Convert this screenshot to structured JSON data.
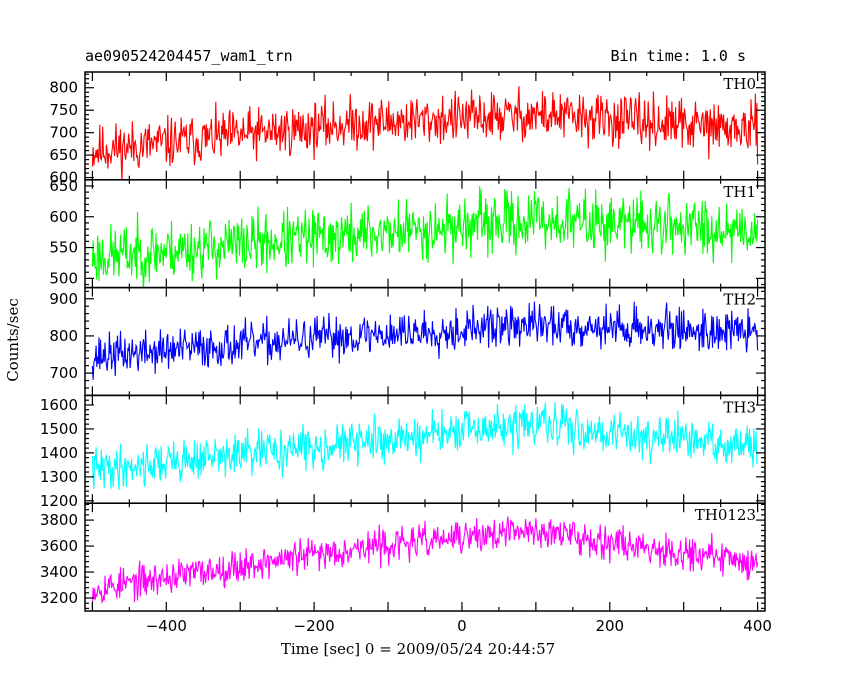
{
  "header": {
    "object_name": "ae090524204457_wam1_trn",
    "bin_time": "Bin time: 1.0 s"
  },
  "axes": {
    "xlabel": "Time [sec] 0 = 2009/05/24 20:44:57",
    "ylabel": "Counts/sec"
  },
  "chart_data": {
    "type": "line",
    "x": {
      "start": -500,
      "end": 400,
      "step": 1,
      "range": [
        -510,
        410
      ],
      "ticks": [
        -400,
        -200,
        0,
        200,
        400
      ]
    },
    "grid": false,
    "stacked_panels": true,
    "series": [
      {
        "name": "TH0",
        "color": "#ff0000",
        "ylim": [
          595,
          835
        ],
        "ticks": [
          600,
          650,
          700,
          750,
          800
        ],
        "level_start": 660,
        "level_mid": 720,
        "level_peak": 740,
        "level_end": 705,
        "noise": 35,
        "seed": 11
      },
      {
        "name": "TH1",
        "color": "#00ff00",
        "ylim": [
          485,
          660
        ],
        "ticks": [
          500,
          550,
          600,
          650
        ],
        "level_start": 535,
        "level_mid": 570,
        "level_peak": 595,
        "level_end": 580,
        "noise": 30,
        "seed": 23
      },
      {
        "name": "TH2",
        "color": "#0000ff",
        "ylim": [
          640,
          930
        ],
        "ticks": [
          700,
          800,
          900
        ],
        "level_start": 745,
        "level_mid": 800,
        "level_peak": 830,
        "level_end": 810,
        "noise": 35,
        "seed": 37
      },
      {
        "name": "TH3",
        "color": "#00ffff",
        "ylim": [
          1190,
          1640
        ],
        "ticks": [
          1200,
          1300,
          1400,
          1500,
          1600
        ],
        "level_start": 1330,
        "level_mid": 1440,
        "level_peak": 1520,
        "level_end": 1420,
        "noise": 55,
        "seed": 41
      },
      {
        "name": "TH0123",
        "color": "#ff00ff",
        "ylim": [
          3100,
          3930
        ],
        "ticks": [
          3200,
          3400,
          3600,
          3800
        ],
        "level_start": 3270,
        "level_mid": 3580,
        "level_peak": 3720,
        "level_end": 3470,
        "noise": 80,
        "seed": 53
      }
    ]
  }
}
